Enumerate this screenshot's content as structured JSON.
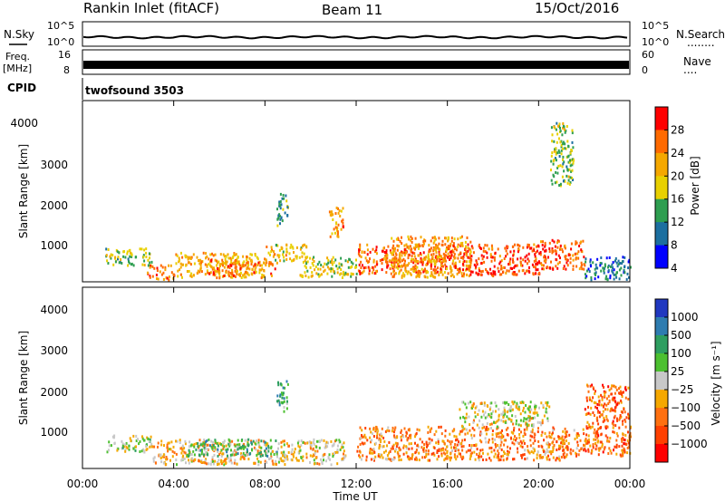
{
  "header": {
    "title": "Rankin Inlet (fitACF)",
    "beam": "Beam 11",
    "date": "15/Oct/2016"
  },
  "noise_panel": {
    "left_label": "N.Sky",
    "right_label": "N.Search",
    "left_ticks": [
      "10^5",
      "10^0"
    ],
    "right_ticks": [
      "10^5",
      "10^0"
    ],
    "legend_dots": "........"
  },
  "freq_panel": {
    "left_label_1": "Freq.",
    "left_label_2": "[MHz]",
    "right_label": "Nave",
    "left_ticks": [
      "16",
      "8"
    ],
    "right_ticks": [
      "60",
      "0"
    ],
    "legend_dots": "...."
  },
  "cpid": {
    "label": "CPID",
    "program": "twofsound 3503"
  },
  "power_panel": {
    "ylabel": "Slant Range [km]",
    "yticks": [
      "4000",
      "3000",
      "2000",
      "1000"
    ],
    "colorbar_label": "Power [dB]",
    "colorbar_ticks": [
      "28",
      "24",
      "20",
      "16",
      "12",
      "8",
      "4"
    ],
    "colorbar_colors": [
      "#ff0000",
      "#ff6a00",
      "#f5a800",
      "#e8d000",
      "#2e9e50",
      "#1c6fa0",
      "#0000ff"
    ]
  },
  "velocity_panel": {
    "ylabel": "Slant Range [km]",
    "yticks": [
      "4000",
      "3000",
      "2000",
      "1000"
    ],
    "colorbar_label": "Velocity [m s⁻¹]",
    "colorbar_ticks": [
      "1000",
      "500",
      "100",
      "25",
      "−25",
      "−100",
      "−500",
      "−1000"
    ],
    "colorbar_colors": [
      "#2038c0",
      "#2e7cb0",
      "#2e9e60",
      "#4cc030",
      "#c8c8c8",
      "#f5a800",
      "#ff7010",
      "#ff4000",
      "#ff0000"
    ]
  },
  "xaxis": {
    "label": "Time UT",
    "ticks": [
      "00:00",
      "04:00",
      "08:00",
      "12:00",
      "16:00",
      "20:00",
      "00:00"
    ]
  },
  "chart_data": {
    "type": "heatmap",
    "title": "Rankin Inlet (fitACF)",
    "xlabel": "Time UT",
    "ylabel": "Slant Range [km]",
    "xlim": [
      0,
      24
    ],
    "ylim": [
      180,
      4500
    ],
    "series": [
      {
        "name": "Power [dB]",
        "clim": [
          0,
          32
        ],
        "blobs": [
          {
            "t": [
              1.0,
              3.0
            ],
            "r": [
              600,
              1000
            ],
            "v": 14
          },
          {
            "t": [
              2.8,
              4.0
            ],
            "r": [
              250,
              600
            ],
            "v": 24
          },
          {
            "t": [
              4.0,
              8.0
            ],
            "r": [
              300,
              900
            ],
            "v": 20
          },
          {
            "t": [
              5.5,
              8.5
            ],
            "r": [
              350,
              750
            ],
            "v": 24
          },
          {
            "t": [
              8.0,
              9.8
            ],
            "r": [
              700,
              1100
            ],
            "v": 18
          },
          {
            "t": [
              8.5,
              9.0
            ],
            "r": [
              1500,
              2300
            ],
            "v": 10
          },
          {
            "t": [
              9.5,
              12.0
            ],
            "r": [
              300,
              800
            ],
            "v": 16
          },
          {
            "t": [
              10.8,
              11.4
            ],
            "r": [
              1200,
              2000
            ],
            "v": 22
          },
          {
            "t": [
              12.0,
              16.0
            ],
            "r": [
              400,
              1100
            ],
            "v": 26
          },
          {
            "t": [
              13.5,
              17.0
            ],
            "r": [
              300,
              1300
            ],
            "v": 22
          },
          {
            "t": [
              16.0,
              20.0
            ],
            "r": [
              350,
              1100
            ],
            "v": 27
          },
          {
            "t": [
              20.0,
              22.0
            ],
            "r": [
              500,
              1200
            ],
            "v": 26
          },
          {
            "t": [
              22.0,
              24.0
            ],
            "r": [
              250,
              800
            ],
            "v": 8
          },
          {
            "t": [
              20.5,
              21.5
            ],
            "r": [
              2500,
              4000
            ],
            "v": 14
          }
        ]
      },
      {
        "name": "Velocity [m s⁻¹]",
        "clim": [
          -1000,
          1000
        ],
        "blobs": [
          {
            "t": [
              1.0,
              3.0
            ],
            "r": [
              600,
              1000
            ],
            "v": 100
          },
          {
            "t": [
              3.0,
              8.0
            ],
            "r": [
              300,
              900
            ],
            "v": -200
          },
          {
            "t": [
              4.5,
              8.5
            ],
            "r": [
              500,
              900
            ],
            "v": 300
          },
          {
            "t": [
              8.0,
              11.5
            ],
            "r": [
              300,
              900
            ],
            "v": -100
          },
          {
            "t": [
              8.5,
              9.0
            ],
            "r": [
              1500,
              2300
            ],
            "v": 400
          },
          {
            "t": [
              12.0,
              22.0
            ],
            "r": [
              400,
              1200
            ],
            "v": -400
          },
          {
            "t": [
              16.5,
              20.5
            ],
            "r": [
              1200,
              1800
            ],
            "v": -25
          },
          {
            "t": [
              22.0,
              24.0
            ],
            "r": [
              500,
              2200
            ],
            "v": -500
          }
        ]
      }
    ]
  }
}
